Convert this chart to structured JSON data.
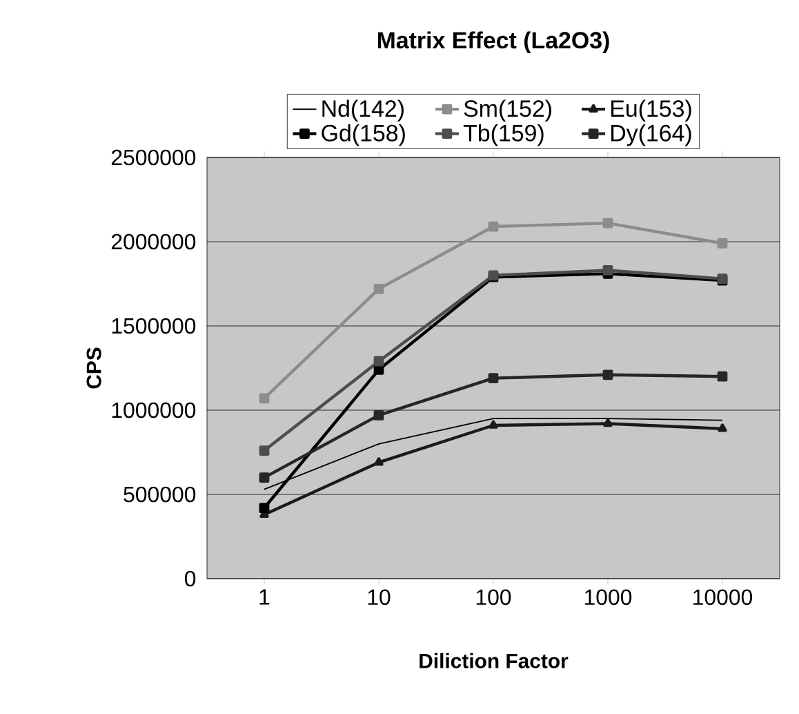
{
  "chart_data": {
    "type": "line",
    "title": "Matrix Effect (La2O3)",
    "xlabel": "Diliction Factor",
    "ylabel": "CPS",
    "categories": [
      "1",
      "10",
      "100",
      "1000",
      "10000"
    ],
    "series": [
      {
        "name": "Nd(142)",
        "color": "#000000",
        "marker": "none",
        "values": [
          530000,
          800000,
          950000,
          950000,
          940000
        ]
      },
      {
        "name": "Sm(152)",
        "color": "#8c8c8c",
        "marker": "square",
        "values": [
          1070000,
          1720000,
          2090000,
          2110000,
          1990000
        ]
      },
      {
        "name": "Eu(153)",
        "color": "#1a1a1a",
        "marker": "triangle",
        "values": [
          380000,
          690000,
          910000,
          920000,
          890000
        ]
      },
      {
        "name": "Gd(158)",
        "color": "#000000",
        "marker": "square",
        "values": [
          420000,
          1240000,
          1790000,
          1810000,
          1770000
        ]
      },
      {
        "name": "Tb(159)",
        "color": "#4d4d4d",
        "marker": "square",
        "values": [
          760000,
          1290000,
          1800000,
          1830000,
          1780000
        ]
      },
      {
        "name": "Dy(164)",
        "color": "#262626",
        "marker": "square",
        "values": [
          600000,
          970000,
          1190000,
          1210000,
          1200000
        ]
      }
    ],
    "ylim": [
      0,
      2500000
    ],
    "yticks": [
      0,
      500000,
      1000000,
      1500000,
      2000000,
      2500000
    ],
    "grid": "y",
    "legend": "top"
  }
}
